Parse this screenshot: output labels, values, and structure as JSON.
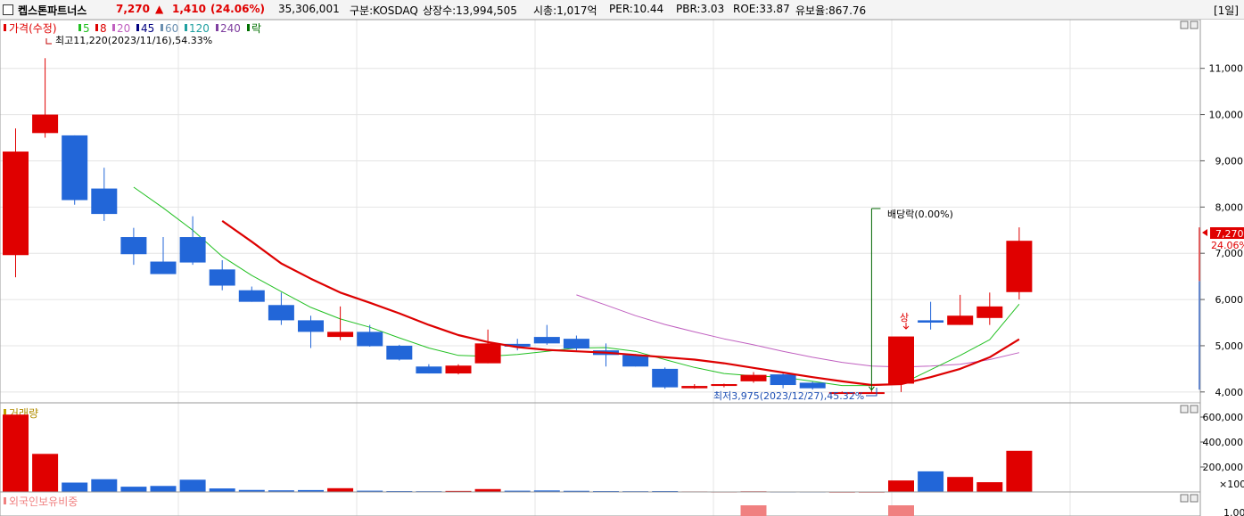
{
  "header": {
    "name": "켑스톤파트너스",
    "price": "7,270",
    "change_arrow": "▲",
    "change": "1,410",
    "change_pct": "(24.06%)",
    "volume": "35,306,001",
    "market": "구분:KOSDAQ",
    "shares": "상장수:13,994,505",
    "mcap": "시총:1,017억",
    "per": "PER:10.44",
    "pbr": "PBR:3.03",
    "roe": "ROE:33.87",
    "retention": "유보율:867.76",
    "period": "[1일]"
  },
  "colors": {
    "up": "#e00000",
    "down": "#2266d8",
    "ma5": "#22c022",
    "ma20": "#dd0000",
    "ma60": "#c060c0",
    "volume_up": "#e00000",
    "volume_down": "#2266d8",
    "foreign": "#f08080",
    "grid": "#e4e4e4"
  },
  "legend": {
    "price_label": "가격(수정)",
    "items": [
      {
        "label": "5",
        "color": "#22c022"
      },
      {
        "label": "8",
        "color": "#dd0000"
      },
      {
        "label": "20",
        "color": "#c060c0"
      },
      {
        "label": "45",
        "color": "#000080"
      },
      {
        "label": "60",
        "color": "#6a8fb0"
      },
      {
        "label": "120",
        "color": "#20a0a0"
      },
      {
        "label": "240",
        "color": "#8040a0"
      },
      {
        "label": "락",
        "color": "#007000"
      }
    ]
  },
  "annotations": {
    "high": "최고11,220(2023/11/16),54.33%",
    "low": "최저3,975(2023/12/27),45.32%",
    "dividend": "배당락(0.00%)",
    "limit_up": "상"
  },
  "price_tag": {
    "value": "7,270",
    "pct": "24.06%"
  },
  "panels": {
    "volume_label": "거래량",
    "foreign_label": "외국인보유비중",
    "volume_unit": "×100"
  },
  "chart_data": [
    {
      "type": "candlestick",
      "name": "price",
      "ylim": [
        3900,
        11900
      ],
      "yticks": [
        4000,
        5000,
        6000,
        7000,
        8000,
        9000,
        10000,
        11000
      ],
      "ytick_labels": [
        "4,000",
        "5,000",
        "6,000",
        "7,000",
        "8,000",
        "9,000",
        "10,000",
        "11,000"
      ],
      "candles": [
        {
          "o": 6960,
          "h": 9700,
          "l": 6480,
          "c": 9200
        },
        {
          "o": 9600,
          "h": 11220,
          "l": 9500,
          "c": 10000
        },
        {
          "o": 9550,
          "h": 9550,
          "l": 8050,
          "c": 8150
        },
        {
          "o": 8400,
          "h": 8850,
          "l": 7700,
          "c": 7850
        },
        {
          "o": 7350,
          "h": 7550,
          "l": 6750,
          "c": 6980
        },
        {
          "o": 6820,
          "h": 7350,
          "l": 6550,
          "c": 6550
        },
        {
          "o": 7350,
          "h": 7800,
          "l": 6750,
          "c": 6800
        },
        {
          "o": 6650,
          "h": 6850,
          "l": 6200,
          "c": 6300
        },
        {
          "o": 6200,
          "h": 6280,
          "l": 5950,
          "c": 5950
        },
        {
          "o": 5880,
          "h": 6150,
          "l": 5450,
          "c": 5550
        },
        {
          "o": 5550,
          "h": 5650,
          "l": 4950,
          "c": 5300
        },
        {
          "o": 5190,
          "h": 5850,
          "l": 5120,
          "c": 5300
        },
        {
          "o": 5300,
          "h": 5450,
          "l": 4980,
          "c": 4990
        },
        {
          "o": 5000,
          "h": 5020,
          "l": 4680,
          "c": 4700
        },
        {
          "o": 4550,
          "h": 4600,
          "l": 4400,
          "c": 4400
        },
        {
          "o": 4400,
          "h": 4600,
          "l": 4380,
          "c": 4570
        },
        {
          "o": 4620,
          "h": 5350,
          "l": 4620,
          "c": 5050
        },
        {
          "o": 5040,
          "h": 5150,
          "l": 4900,
          "c": 4980
        },
        {
          "o": 5190,
          "h": 5450,
          "l": 5020,
          "c": 5050
        },
        {
          "o": 5150,
          "h": 5220,
          "l": 4900,
          "c": 4940
        },
        {
          "o": 4900,
          "h": 5050,
          "l": 4550,
          "c": 4800
        },
        {
          "o": 4800,
          "h": 4820,
          "l": 4550,
          "c": 4550
        },
        {
          "o": 4500,
          "h": 4530,
          "l": 4070,
          "c": 4100
        },
        {
          "o": 4080,
          "h": 4170,
          "l": 4070,
          "c": 4130
        },
        {
          "o": 4130,
          "h": 4180,
          "l": 4100,
          "c": 4170
        },
        {
          "o": 4230,
          "h": 4430,
          "l": 4200,
          "c": 4370
        },
        {
          "o": 4380,
          "h": 4400,
          "l": 4080,
          "c": 4150
        },
        {
          "o": 4200,
          "h": 4220,
          "l": 4050,
          "c": 4080
        },
        {
          "o": 3990,
          "h": 4010,
          "l": 3975,
          "c": 3995
        },
        {
          "o": 3995,
          "h": 4050,
          "l": 3975,
          "c": 3995
        },
        {
          "o": 4180,
          "h": 5200,
          "l": 4000,
          "c": 5200
        },
        {
          "o": 5550,
          "h": 5950,
          "l": 5350,
          "c": 5500
        },
        {
          "o": 5450,
          "h": 6100,
          "l": 5450,
          "c": 5650
        },
        {
          "o": 5600,
          "h": 6150,
          "l": 5450,
          "c": 5850
        },
        {
          "o": 6160,
          "h": 7560,
          "l": 6000,
          "c": 7270
        }
      ],
      "ma5": [
        [
          4,
          8430
        ],
        [
          5,
          7980
        ],
        [
          6,
          7500
        ],
        [
          7,
          6930
        ],
        [
          8,
          6520
        ],
        [
          9,
          6170
        ],
        [
          10,
          5830
        ],
        [
          11,
          5580
        ],
        [
          12,
          5400
        ],
        [
          13,
          5170
        ],
        [
          14,
          4950
        ],
        [
          15,
          4790
        ],
        [
          16,
          4770
        ],
        [
          17,
          4810
        ],
        [
          18,
          4880
        ],
        [
          19,
          4950
        ],
        [
          20,
          4960
        ],
        [
          21,
          4880
        ],
        [
          22,
          4700
        ],
        [
          23,
          4530
        ],
        [
          24,
          4400
        ],
        [
          25,
          4350
        ],
        [
          26,
          4320
        ],
        [
          27,
          4230
        ],
        [
          28,
          4140
        ],
        [
          29,
          4140
        ],
        [
          30,
          4170
        ],
        [
          31,
          4480
        ],
        [
          32,
          4790
        ],
        [
          33,
          5130
        ],
        [
          34,
          5900
        ]
      ],
      "ma20": [
        [
          7,
          7700
        ],
        [
          8,
          7250
        ],
        [
          9,
          6780
        ],
        [
          10,
          6450
        ],
        [
          11,
          6150
        ],
        [
          12,
          5930
        ],
        [
          13,
          5700
        ],
        [
          14,
          5450
        ],
        [
          15,
          5230
        ],
        [
          16,
          5080
        ],
        [
          17,
          4970
        ],
        [
          18,
          4910
        ],
        [
          19,
          4880
        ],
        [
          20,
          4850
        ],
        [
          21,
          4800
        ],
        [
          22,
          4750
        ],
        [
          23,
          4700
        ],
        [
          24,
          4620
        ],
        [
          25,
          4520
        ],
        [
          26,
          4420
        ],
        [
          27,
          4320
        ],
        [
          28,
          4230
        ],
        [
          29,
          4150
        ],
        [
          30,
          4170
        ],
        [
          31,
          4320
        ],
        [
          32,
          4500
        ],
        [
          33,
          4750
        ],
        [
          34,
          5140
        ]
      ],
      "ma60": [
        [
          19,
          6100
        ],
        [
          20,
          5880
        ],
        [
          21,
          5650
        ],
        [
          22,
          5460
        ],
        [
          23,
          5300
        ],
        [
          24,
          5150
        ],
        [
          25,
          5020
        ],
        [
          26,
          4880
        ],
        [
          27,
          4750
        ],
        [
          28,
          4640
        ],
        [
          29,
          4560
        ],
        [
          30,
          4540
        ],
        [
          31,
          4560
        ],
        [
          32,
          4600
        ],
        [
          33,
          4700
        ],
        [
          34,
          4850
        ]
      ]
    },
    {
      "type": "bar",
      "name": "volume",
      "ylim": [
        0,
        700000
      ],
      "yticks": [
        200000,
        400000,
        600000
      ],
      "ytick_labels": [
        "200,000",
        "400,000",
        "600,000"
      ],
      "values": [
        620000,
        305000,
        75000,
        102000,
        42000,
        48000,
        98000,
        28000,
        16000,
        13000,
        15000,
        30000,
        10000,
        7000,
        6000,
        8000,
        23000,
        10000,
        12000,
        9000,
        7000,
        6000,
        7000,
        4000,
        3000,
        5000,
        3000,
        3000,
        2000,
        2000,
        92000,
        165000,
        120000,
        78000,
        330000
      ]
    },
    {
      "type": "bar",
      "name": "foreign",
      "ytick_labels": [
        "1.00"
      ],
      "values": [
        [
          25,
          1.0
        ],
        [
          30,
          1.0
        ]
      ]
    }
  ]
}
